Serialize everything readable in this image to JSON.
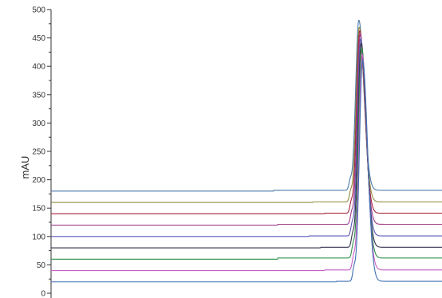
{
  "chart_data": {
    "type": "line",
    "title": "",
    "xlabel": "",
    "ylabel": "mAU",
    "ylim": [
      0,
      500
    ],
    "yticks": [
      0,
      50,
      100,
      150,
      200,
      250,
      300,
      350,
      400,
      450,
      500
    ],
    "xlim": [
      0,
      100
    ],
    "x_tick_labels_shown": false,
    "grid": false,
    "legend": "none",
    "peak": {
      "x_center": 79.2,
      "width": 0.8,
      "max_values": [
        480,
        468,
        462,
        455,
        448,
        440,
        430,
        420,
        410
      ]
    },
    "series": [
      {
        "baseline": 180,
        "color": "#4a7aa8",
        "step_at": 57,
        "step_size": 1.5
      },
      {
        "baseline": 160,
        "color": "#8e8a3c",
        "step_at": 67,
        "step_size": 1.0
      },
      {
        "baseline": 140,
        "color": "#a5263b",
        "step_at": 70,
        "step_size": 1.0
      },
      {
        "baseline": 120,
        "color": "#9d3d8a",
        "step_at": 58,
        "step_size": 1.5
      },
      {
        "baseline": 100,
        "color": "#5b56b8",
        "step_at": 66,
        "step_size": 1.0
      },
      {
        "baseline": 80,
        "color": "#33334d",
        "step_at": 69,
        "step_size": 1.0
      },
      {
        "baseline": 60,
        "color": "#2f8f4a",
        "step_at": 58,
        "step_size": 2.0
      },
      {
        "baseline": 40,
        "color": "#c45fc4",
        "step_at": 70,
        "step_size": 1.0
      },
      {
        "baseline": 20,
        "color": "#3f6fb0",
        "step_at": 73,
        "step_size": 1.0
      }
    ]
  }
}
